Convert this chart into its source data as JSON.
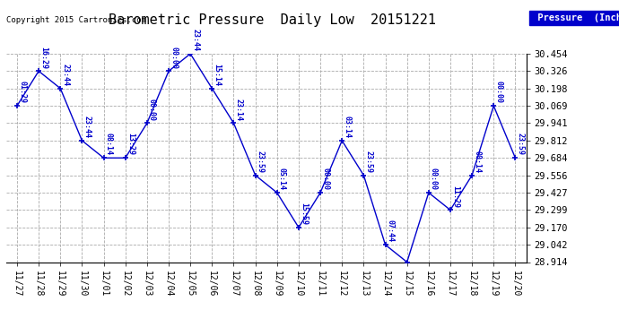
{
  "title": "Barometric Pressure  Daily Low  20151221",
  "copyright": "Copyright 2015 Cartronics.com",
  "legend_label": "Pressure  (Inches/Hg)",
  "x_labels": [
    "11/27",
    "11/28",
    "11/29",
    "11/30",
    "12/01",
    "12/02",
    "12/03",
    "12/04",
    "12/05",
    "12/06",
    "12/07",
    "12/08",
    "12/09",
    "12/10",
    "12/11",
    "12/12",
    "12/13",
    "12/14",
    "12/15",
    "12/16",
    "12/17",
    "12/18",
    "12/19",
    "12/20"
  ],
  "y_values": [
    30.069,
    30.326,
    30.198,
    29.812,
    29.684,
    29.684,
    29.941,
    30.326,
    30.454,
    30.198,
    29.941,
    29.556,
    29.427,
    29.17,
    29.427,
    29.812,
    29.556,
    29.042,
    28.914,
    29.427,
    29.299,
    29.556,
    30.069,
    29.684
  ],
  "point_labels": [
    "01:29",
    "16:29",
    "23:44",
    "23:44",
    "08:14",
    "13:29",
    "00:00",
    "00:00",
    "23:44",
    "15:14",
    "23:14",
    "23:59",
    "05:14",
    "15:59",
    "00:00",
    "03:14",
    "23:59",
    "07:44",
    "",
    "00:00",
    "11:29",
    "00:14",
    "00:00",
    "23:59"
  ],
  "ylim_min": 28.914,
  "ylim_max": 30.454,
  "ytick_values": [
    28.914,
    29.042,
    29.17,
    29.299,
    29.427,
    29.556,
    29.684,
    29.812,
    29.941,
    30.069,
    30.198,
    30.326,
    30.454
  ],
  "line_color": "#0000cc",
  "marker_color": "#0000cc",
  "bg_color": "#ffffff",
  "grid_color": "#aaaaaa",
  "title_color": "#000000",
  "legend_bg": "#0000cc",
  "legend_text_color": "#ffffff"
}
